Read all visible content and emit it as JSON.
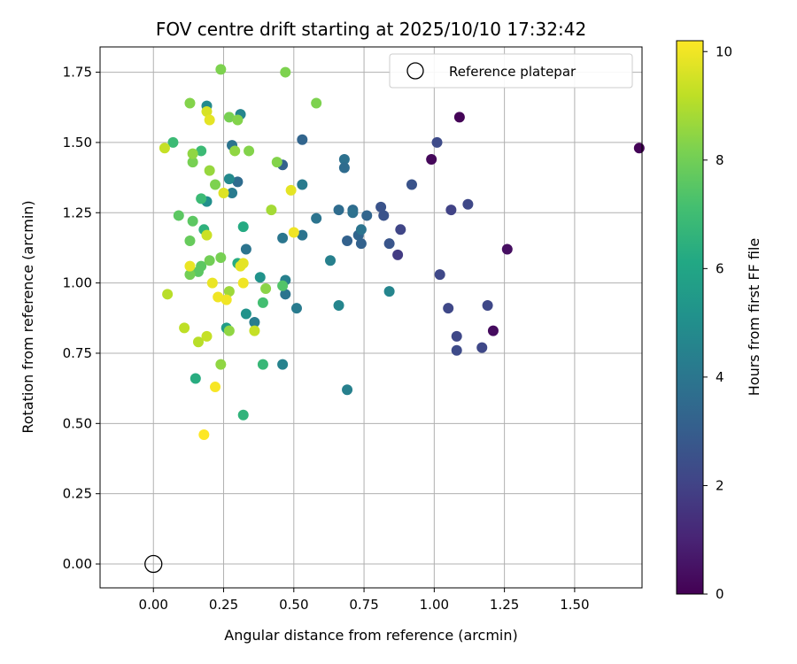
{
  "chart_data": {
    "type": "scatter",
    "title": "FOV centre drift starting at 2025/10/10 17:32:42",
    "xlabel": "Angular distance from reference (arcmin)",
    "ylabel": "Rotation from reference (arcmin)",
    "xlim": [
      -0.19,
      1.74
    ],
    "ylim": [
      -0.085,
      1.84
    ],
    "xticks": [
      "0.00",
      "0.25",
      "0.50",
      "0.75",
      "1.00",
      "1.25",
      "1.50"
    ],
    "xtick_values": [
      0,
      0.25,
      0.5,
      0.75,
      1.0,
      1.25,
      1.5
    ],
    "yticks": [
      "0.00",
      "0.25",
      "0.50",
      "0.75",
      "1.00",
      "1.25",
      "1.50",
      "1.75"
    ],
    "ytick_values": [
      0,
      0.25,
      0.5,
      0.75,
      1.0,
      1.25,
      1.5,
      1.75
    ],
    "grid": true,
    "legend": {
      "position": "top-right",
      "entries": [
        "Reference platepar"
      ]
    },
    "reference_point": {
      "x": 0.0,
      "y": 0.0
    },
    "colorbar": {
      "label": "Hours from first FF file",
      "range": [
        0,
        10.2
      ],
      "ticks": [
        "0",
        "2",
        "4",
        "6",
        "8",
        "10"
      ],
      "tick_values": [
        0,
        2,
        4,
        6,
        8,
        10
      ],
      "colormap": "viridis"
    },
    "points": [
      {
        "x": 1.73,
        "y": 1.48,
        "c": 0.1
      },
      {
        "x": 1.09,
        "y": 1.59,
        "c": 0.1
      },
      {
        "x": 0.99,
        "y": 1.44,
        "c": 0.2
      },
      {
        "x": 1.26,
        "y": 1.12,
        "c": 0.4
      },
      {
        "x": 1.21,
        "y": 0.83,
        "c": 0.3
      },
      {
        "x": 1.01,
        "y": 1.5,
        "c": 2.3
      },
      {
        "x": 1.12,
        "y": 1.28,
        "c": 2.2
      },
      {
        "x": 1.06,
        "y": 1.26,
        "c": 2.0
      },
      {
        "x": 1.02,
        "y": 1.03,
        "c": 2.2
      },
      {
        "x": 1.05,
        "y": 0.91,
        "c": 2.2
      },
      {
        "x": 1.08,
        "y": 0.81,
        "c": 2.2
      },
      {
        "x": 1.08,
        "y": 0.76,
        "c": 2.3
      },
      {
        "x": 1.17,
        "y": 0.77,
        "c": 2.2
      },
      {
        "x": 1.19,
        "y": 0.92,
        "c": 2.2
      },
      {
        "x": 0.92,
        "y": 1.35,
        "c": 2.6
      },
      {
        "x": 0.88,
        "y": 1.19,
        "c": 2.1
      },
      {
        "x": 0.87,
        "y": 1.1,
        "c": 1.8
      },
      {
        "x": 0.84,
        "y": 1.14,
        "c": 2.7
      },
      {
        "x": 0.82,
        "y": 1.24,
        "c": 2.6
      },
      {
        "x": 0.81,
        "y": 1.27,
        "c": 2.6
      },
      {
        "x": 0.74,
        "y": 1.14,
        "c": 3.2
      },
      {
        "x": 0.69,
        "y": 1.15,
        "c": 3.2
      },
      {
        "x": 0.73,
        "y": 1.17,
        "c": 3.3
      },
      {
        "x": 0.76,
        "y": 1.24,
        "c": 3.3
      },
      {
        "x": 0.71,
        "y": 1.26,
        "c": 3.6
      },
      {
        "x": 0.71,
        "y": 1.25,
        "c": 3.8
      },
      {
        "x": 0.66,
        "y": 1.26,
        "c": 3.6
      },
      {
        "x": 0.68,
        "y": 1.44,
        "c": 3.8
      },
      {
        "x": 0.68,
        "y": 1.41,
        "c": 3.6
      },
      {
        "x": 0.74,
        "y": 1.19,
        "c": 3.9
      },
      {
        "x": 0.53,
        "y": 1.51,
        "c": 3.3
      },
      {
        "x": 0.46,
        "y": 1.42,
        "c": 3.2
      },
      {
        "x": 0.53,
        "y": 1.35,
        "c": 4.2
      },
      {
        "x": 0.58,
        "y": 1.23,
        "c": 3.9
      },
      {
        "x": 0.53,
        "y": 1.17,
        "c": 3.9
      },
      {
        "x": 0.46,
        "y": 1.16,
        "c": 4.0
      },
      {
        "x": 0.47,
        "y": 0.96,
        "c": 3.9
      },
      {
        "x": 0.51,
        "y": 0.91,
        "c": 4.2
      },
      {
        "x": 0.47,
        "y": 1.01,
        "c": 4.4
      },
      {
        "x": 0.63,
        "y": 1.08,
        "c": 4.4
      },
      {
        "x": 0.66,
        "y": 0.92,
        "c": 4.6
      },
      {
        "x": 0.84,
        "y": 0.97,
        "c": 4.6
      },
      {
        "x": 0.69,
        "y": 0.62,
        "c": 4.4
      },
      {
        "x": 0.46,
        "y": 0.71,
        "c": 4.5
      },
      {
        "x": 0.36,
        "y": 0.86,
        "c": 4.3
      },
      {
        "x": 0.33,
        "y": 1.12,
        "c": 3.9
      },
      {
        "x": 0.3,
        "y": 1.36,
        "c": 3.6
      },
      {
        "x": 0.28,
        "y": 1.32,
        "c": 4.2
      },
      {
        "x": 0.28,
        "y": 1.49,
        "c": 3.9
      },
      {
        "x": 0.31,
        "y": 1.6,
        "c": 4.6
      },
      {
        "x": 0.19,
        "y": 1.63,
        "c": 4.8
      },
      {
        "x": 0.27,
        "y": 1.37,
        "c": 4.8
      },
      {
        "x": 0.19,
        "y": 1.29,
        "c": 5.0
      },
      {
        "x": 0.38,
        "y": 1.02,
        "c": 5.2
      },
      {
        "x": 0.33,
        "y": 0.89,
        "c": 5.2
      },
      {
        "x": 0.26,
        "y": 0.84,
        "c": 5.6
      },
      {
        "x": 0.32,
        "y": 1.2,
        "c": 6.2
      },
      {
        "x": 0.3,
        "y": 1.07,
        "c": 6.3
      },
      {
        "x": 0.18,
        "y": 1.19,
        "c": 6.5
      },
      {
        "x": 0.07,
        "y": 1.5,
        "c": 6.9
      },
      {
        "x": 0.17,
        "y": 1.47,
        "c": 6.9
      },
      {
        "x": 0.17,
        "y": 1.3,
        "c": 6.9
      },
      {
        "x": 0.15,
        "y": 0.66,
        "c": 6.3
      },
      {
        "x": 0.39,
        "y": 0.71,
        "c": 6.8
      },
      {
        "x": 0.32,
        "y": 0.53,
        "c": 6.6
      },
      {
        "x": 0.39,
        "y": 0.93,
        "c": 7.1
      },
      {
        "x": 0.46,
        "y": 0.99,
        "c": 7.4
      },
      {
        "x": 0.09,
        "y": 1.24,
        "c": 7.6
      },
      {
        "x": 0.14,
        "y": 1.22,
        "c": 7.6
      },
      {
        "x": 0.13,
        "y": 1.15,
        "c": 7.8
      },
      {
        "x": 0.17,
        "y": 1.06,
        "c": 7.6
      },
      {
        "x": 0.16,
        "y": 1.04,
        "c": 7.6
      },
      {
        "x": 0.13,
        "y": 1.03,
        "c": 8.0
      },
      {
        "x": 0.2,
        "y": 1.08,
        "c": 8.0
      },
      {
        "x": 0.24,
        "y": 1.09,
        "c": 8.1
      },
      {
        "x": 0.27,
        "y": 1.59,
        "c": 8.1
      },
      {
        "x": 0.13,
        "y": 1.64,
        "c": 8.3
      },
      {
        "x": 0.24,
        "y": 1.76,
        "c": 8.2
      },
      {
        "x": 0.47,
        "y": 1.75,
        "c": 8.2
      },
      {
        "x": 0.58,
        "y": 1.64,
        "c": 8.2
      },
      {
        "x": 0.3,
        "y": 1.58,
        "c": 8.3
      },
      {
        "x": 0.14,
        "y": 1.43,
        "c": 8.1
      },
      {
        "x": 0.22,
        "y": 1.35,
        "c": 8.2
      },
      {
        "x": 0.44,
        "y": 1.43,
        "c": 8.3
      },
      {
        "x": 0.34,
        "y": 1.47,
        "c": 8.3
      },
      {
        "x": 0.29,
        "y": 1.47,
        "c": 8.5
      },
      {
        "x": 0.14,
        "y": 1.46,
        "c": 8.5
      },
      {
        "x": 0.2,
        "y": 1.4,
        "c": 8.6
      },
      {
        "x": 0.42,
        "y": 1.26,
        "c": 8.8
      },
      {
        "x": 0.27,
        "y": 0.97,
        "c": 8.7
      },
      {
        "x": 0.4,
        "y": 0.98,
        "c": 8.4
      },
      {
        "x": 0.27,
        "y": 0.83,
        "c": 8.5
      },
      {
        "x": 0.24,
        "y": 0.71,
        "c": 8.5
      },
      {
        "x": 0.05,
        "y": 0.96,
        "c": 9.1
      },
      {
        "x": 0.11,
        "y": 0.84,
        "c": 9.2
      },
      {
        "x": 0.16,
        "y": 0.79,
        "c": 9.1
      },
      {
        "x": 0.19,
        "y": 0.81,
        "c": 9.3
      },
      {
        "x": 0.36,
        "y": 0.83,
        "c": 9.3
      },
      {
        "x": 0.19,
        "y": 1.17,
        "c": 9.4
      },
      {
        "x": 0.04,
        "y": 1.48,
        "c": 9.3
      },
      {
        "x": 0.19,
        "y": 1.61,
        "c": 9.6
      },
      {
        "x": 0.2,
        "y": 1.58,
        "c": 9.8
      },
      {
        "x": 0.49,
        "y": 1.33,
        "c": 9.8
      },
      {
        "x": 0.25,
        "y": 1.32,
        "c": 9.7
      },
      {
        "x": 0.5,
        "y": 1.18,
        "c": 10.0
      },
      {
        "x": 0.13,
        "y": 1.06,
        "c": 9.9
      },
      {
        "x": 0.31,
        "y": 1.06,
        "c": 9.8
      },
      {
        "x": 0.32,
        "y": 1.07,
        "c": 9.8
      },
      {
        "x": 0.21,
        "y": 1.0,
        "c": 9.9
      },
      {
        "x": 0.32,
        "y": 1.0,
        "c": 10.0
      },
      {
        "x": 0.23,
        "y": 0.95,
        "c": 10.0
      },
      {
        "x": 0.26,
        "y": 0.94,
        "c": 10.0
      },
      {
        "x": 0.22,
        "y": 0.63,
        "c": 10.1
      },
      {
        "x": 0.18,
        "y": 0.46,
        "c": 10.2
      }
    ]
  }
}
